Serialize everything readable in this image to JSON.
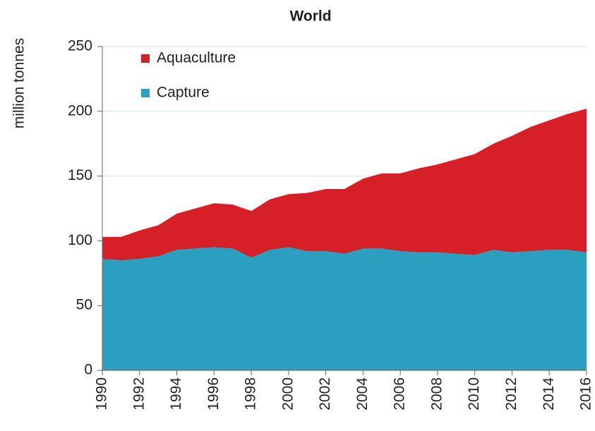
{
  "chart_data": {
    "type": "stacked_area",
    "title": "World",
    "y_label": "million tonnes",
    "x": [
      1990,
      1991,
      1992,
      1993,
      1994,
      1995,
      1996,
      1997,
      1998,
      1999,
      2000,
      2001,
      2002,
      2003,
      2004,
      2005,
      2006,
      2007,
      2008,
      2009,
      2010,
      2011,
      2012,
      2013,
      2014,
      2015,
      2016
    ],
    "series": [
      {
        "name": "Capture",
        "color": "#2b9fc0",
        "values": [
          86,
          85,
          86,
          88,
          93,
          94,
          95,
          94,
          87,
          93,
          95,
          92,
          92,
          90,
          94,
          94,
          92,
          91,
          91,
          90,
          89,
          93,
          91,
          92,
          93,
          93,
          91
        ]
      },
      {
        "name": "Aquaculture",
        "color": "#d71f27",
        "values": [
          17,
          18,
          22,
          24,
          28,
          31,
          34,
          34,
          36,
          39,
          41,
          45,
          48,
          50,
          54,
          58,
          60,
          65,
          68,
          73,
          78,
          82,
          90,
          96,
          100,
          105,
          111
        ]
      }
    ],
    "xlim": [
      1990,
      2016
    ],
    "xticks": [
      1990,
      1992,
      1994,
      1996,
      1998,
      2000,
      2002,
      2004,
      2006,
      2008,
      2010,
      2012,
      2014,
      2016
    ],
    "ylim": [
      0,
      250
    ],
    "yticks": [
      0,
      50,
      100,
      150,
      200,
      250
    ],
    "grid": true,
    "legend": "upper left"
  }
}
